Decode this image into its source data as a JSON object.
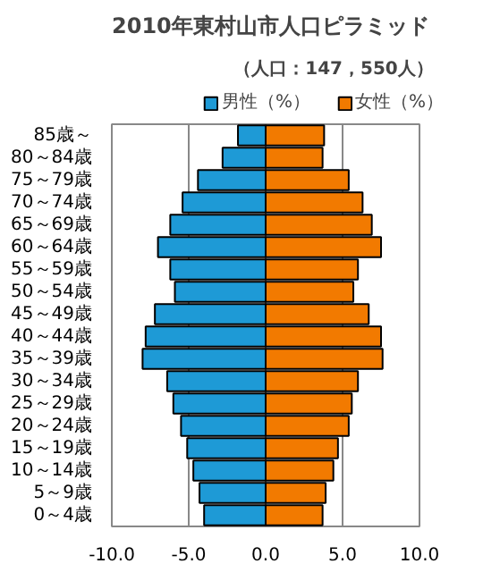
{
  "chart_data": {
    "type": "bar",
    "orientation": "horizontal",
    "title": "2010年東村山市人口ピラミッド",
    "subtitle": "（人口：147，550人）",
    "categories": [
      "85歳～",
      "80～84歳",
      "75～79歳",
      "70～74歳",
      "65～69歳",
      "60～64歳",
      "55～59歳",
      "50～54歳",
      "45～49歳",
      "40～44歳",
      "35～39歳",
      "30～34歳",
      "25～29歳",
      "20～24歳",
      "15～19歳",
      "10～14歳",
      "5～9歳",
      "0～4歳"
    ],
    "series": [
      {
        "name": "男性（%）",
        "color": "#1e9ad6",
        "values": [
          -1.8,
          -2.8,
          -4.4,
          -5.4,
          -6.2,
          -7.0,
          -6.2,
          -5.9,
          -7.2,
          -7.8,
          -8.0,
          -6.4,
          -6.0,
          -5.5,
          -5.1,
          -4.7,
          -4.3,
          -4.0
        ]
      },
      {
        "name": "女性（%）",
        "color": "#f27a00",
        "values": [
          3.8,
          3.7,
          5.4,
          6.3,
          6.9,
          7.5,
          6.0,
          5.7,
          6.7,
          7.5,
          7.6,
          6.0,
          5.6,
          5.4,
          4.7,
          4.4,
          3.9,
          3.7
        ]
      }
    ],
    "xlim": [
      -10,
      10
    ],
    "xticks": [
      {
        "value": -10,
        "label": "-10.0"
      },
      {
        "value": -5,
        "label": "-5.0"
      },
      {
        "value": 0,
        "label": "0.0"
      },
      {
        "value": 5,
        "label": "5.0"
      },
      {
        "value": 10,
        "label": "10.0"
      }
    ],
    "stacked": true,
    "grid": "x",
    "legend": "top right"
  }
}
